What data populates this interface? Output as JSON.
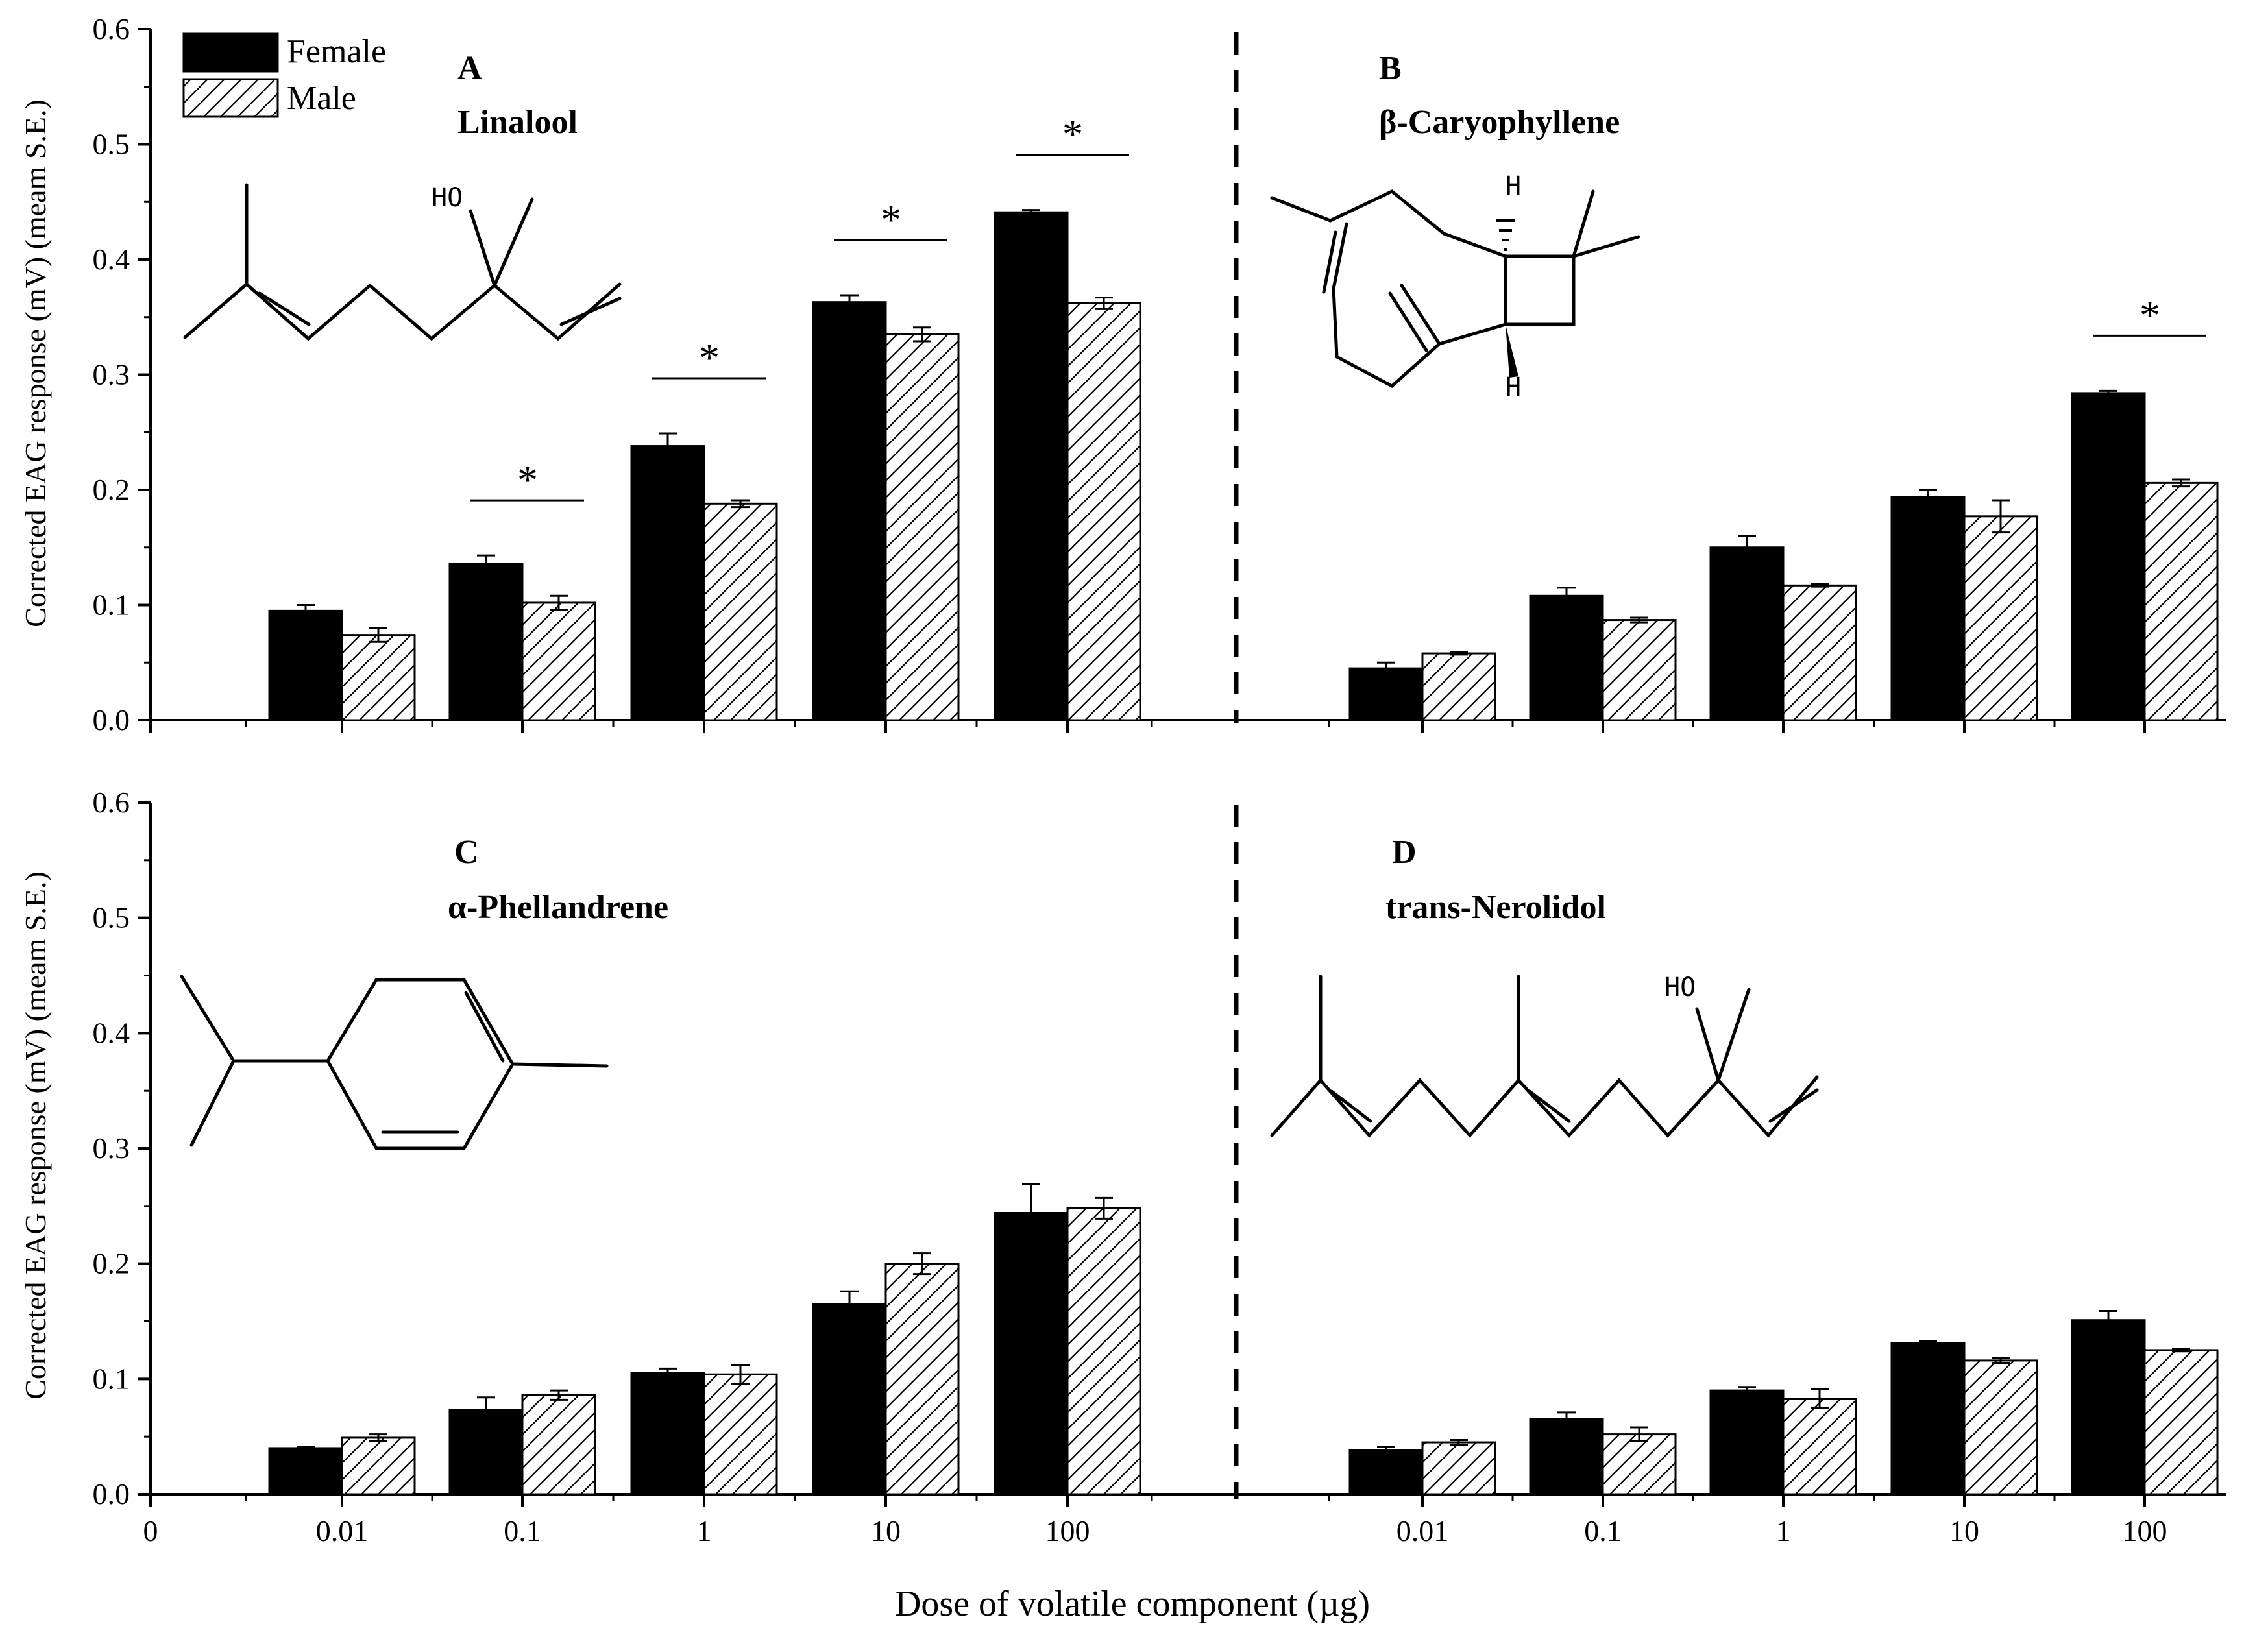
{
  "figure": {
    "xlabel": "Dose of volatile component (µg)",
    "ylabel": "Corrected EAG response (mV) (meam S.E.)",
    "x_zero_label": "0",
    "legend": {
      "female": "Female",
      "male": "Male"
    },
    "colors": {
      "female": "#000000",
      "male": "#ffffff",
      "hatch": "#000000"
    }
  },
  "chart_data": [
    {
      "type": "bar",
      "panel": "A",
      "title": "Linalool",
      "categories": [
        "0.01",
        "0.1",
        "1",
        "10",
        "100"
      ],
      "ylim": [
        0,
        0.6
      ],
      "yticks": [
        "0.0",
        "0.1",
        "0.2",
        "0.3",
        "0.4",
        "0.5",
        "0.6"
      ],
      "series": [
        {
          "name": "Female",
          "values": [
            0.095,
            0.136,
            0.238,
            0.363,
            0.441
          ],
          "errors": [
            0.005,
            0.007,
            0.011,
            0.006,
            0.002
          ]
        },
        {
          "name": "Male",
          "values": [
            0.074,
            0.102,
            0.188,
            0.335,
            0.362
          ],
          "errors": [
            0.006,
            0.006,
            0.003,
            0.006,
            0.005
          ]
        }
      ],
      "significance": [
        "",
        "*",
        "*",
        "*",
        "*"
      ]
    },
    {
      "type": "bar",
      "panel": "B",
      "title": "β-Caryophyllene",
      "categories": [
        "0.01",
        "0.1",
        "1",
        "10",
        "100"
      ],
      "ylim": [
        0,
        0.6
      ],
      "yticks": [
        "0.0",
        "0.1",
        "0.2",
        "0.3",
        "0.4",
        "0.5",
        "0.6"
      ],
      "series": [
        {
          "name": "Female",
          "values": [
            0.045,
            0.108,
            0.15,
            0.194,
            0.284
          ],
          "errors": [
            0.005,
            0.007,
            0.01,
            0.006,
            0.002
          ]
        },
        {
          "name": "Male",
          "values": [
            0.058,
            0.087,
            0.117,
            0.177,
            0.206
          ],
          "errors": [
            0.001,
            0.002,
            0.001,
            0.014,
            0.003
          ]
        }
      ],
      "significance": [
        "",
        "",
        "",
        "",
        "*"
      ]
    },
    {
      "type": "bar",
      "panel": "C",
      "title": "α-Phellandrene",
      "categories": [
        "0.01",
        "0.1",
        "1",
        "10",
        "100"
      ],
      "ylim": [
        0,
        0.6
      ],
      "yticks": [
        "0.0",
        "0.1",
        "0.2",
        "0.3",
        "0.4",
        "0.5",
        "0.6"
      ],
      "series": [
        {
          "name": "Female",
          "values": [
            0.04,
            0.073,
            0.105,
            0.165,
            0.244
          ],
          "errors": [
            0.001,
            0.011,
            0.004,
            0.011,
            0.025
          ]
        },
        {
          "name": "Male",
          "values": [
            0.049,
            0.086,
            0.104,
            0.2,
            0.248
          ],
          "errors": [
            0.003,
            0.004,
            0.008,
            0.009,
            0.009
          ]
        }
      ],
      "significance": [
        "",
        "",
        "",
        "",
        ""
      ]
    },
    {
      "type": "bar",
      "panel": "D",
      "title": "trans-Nerolidol",
      "categories": [
        "0.01",
        "0.1",
        "1",
        "10",
        "100"
      ],
      "ylim": [
        0,
        0.6
      ],
      "yticks": [
        "0.0",
        "0.1",
        "0.2",
        "0.3",
        "0.4",
        "0.5",
        "0.6"
      ],
      "series": [
        {
          "name": "Female",
          "values": [
            0.038,
            0.065,
            0.09,
            0.131,
            0.151
          ],
          "errors": [
            0.003,
            0.006,
            0.003,
            0.002,
            0.008
          ]
        },
        {
          "name": "Male",
          "values": [
            0.045,
            0.052,
            0.083,
            0.116,
            0.125
          ],
          "errors": [
            0.002,
            0.006,
            0.008,
            0.002,
            0.001
          ]
        }
      ],
      "significance": [
        "",
        "",
        "",
        "",
        ""
      ]
    }
  ],
  "molecules": {
    "linalool_ho": "HO",
    "caryophyllene_h_top": "H",
    "caryophyllene_h_bottom": "H",
    "nerolidol_ho": "HO"
  }
}
